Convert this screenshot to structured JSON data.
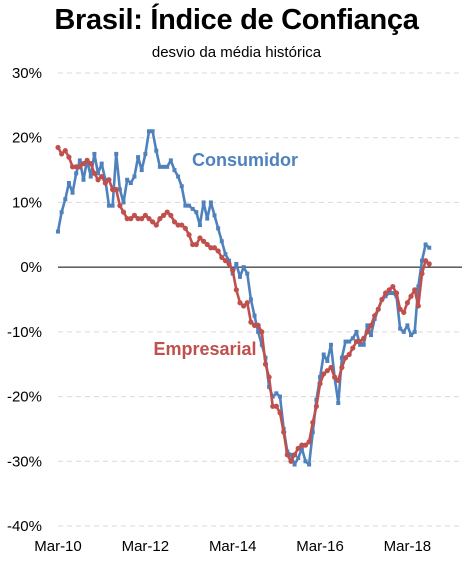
{
  "chart_data": {
    "type": "line",
    "title": "Brasil: Índice de Confiança",
    "subtitle": "desvio da média histórica",
    "ylim": [
      -40,
      30
    ],
    "yticks": [
      30,
      20,
      10,
      0,
      -10,
      -20,
      -30,
      -40
    ],
    "ytick_labels": [
      "30%",
      "20%",
      "10%",
      "0%",
      "-10%",
      "-20%",
      "-30%",
      "-40%"
    ],
    "xlim": [
      "2010-03",
      "2019-06"
    ],
    "xticks": [
      "2010-03",
      "2012-03",
      "2014-03",
      "2016-03",
      "2018-03"
    ],
    "xtick_labels": [
      "Mar-10",
      "Mar-12",
      "Mar-14",
      "Mar-16",
      "Mar-18"
    ],
    "grid": true,
    "series": [
      {
        "name": "Consumidor",
        "color": "#4f81bd",
        "points": [
          [
            "2010-03",
            5.5
          ],
          [
            "2010-04",
            8.5
          ],
          [
            "2010-05",
            10.5
          ],
          [
            "2010-06",
            13.0
          ],
          [
            "2010-07",
            11.5
          ],
          [
            "2010-08",
            14.5
          ],
          [
            "2010-09",
            16.5
          ],
          [
            "2010-10",
            13.5
          ],
          [
            "2010-11",
            16.5
          ],
          [
            "2010-12",
            14.0
          ],
          [
            "2011-01",
            17.5
          ],
          [
            "2011-02",
            14.5
          ],
          [
            "2011-03",
            16.0
          ],
          [
            "2011-04",
            13.5
          ],
          [
            "2011-05",
            9.5
          ],
          [
            "2011-06",
            9.5
          ],
          [
            "2011-07",
            17.5
          ],
          [
            "2011-08",
            12.0
          ],
          [
            "2011-09",
            10.0
          ],
          [
            "2011-10",
            13.5
          ],
          [
            "2011-11",
            13.0
          ],
          [
            "2011-12",
            14.0
          ],
          [
            "2012-01",
            17.0
          ],
          [
            "2012-02",
            15.0
          ],
          [
            "2012-03",
            17.5
          ],
          [
            "2012-04",
            21.0
          ],
          [
            "2012-05",
            21.0
          ],
          [
            "2012-06",
            18.0
          ],
          [
            "2012-07",
            15.5
          ],
          [
            "2012-08",
            15.5
          ],
          [
            "2012-09",
            15.5
          ],
          [
            "2012-10",
            16.5
          ],
          [
            "2012-11",
            15.0
          ],
          [
            "2012-12",
            14.0
          ],
          [
            "2013-01",
            12.5
          ],
          [
            "2013-02",
            9.5
          ],
          [
            "2013-03",
            9.5
          ],
          [
            "2013-04",
            9.0
          ],
          [
            "2013-05",
            8.5
          ],
          [
            "2013-06",
            6.5
          ],
          [
            "2013-07",
            10.0
          ],
          [
            "2013-08",
            7.5
          ],
          [
            "2013-09",
            10.0
          ],
          [
            "2013-10",
            8.0
          ],
          [
            "2013-11",
            6.0
          ],
          [
            "2013-12",
            4.0
          ],
          [
            "2014-01",
            2.0
          ],
          [
            "2014-02",
            1.0
          ],
          [
            "2014-03",
            -1.0
          ],
          [
            "2014-04",
            0.5
          ],
          [
            "2014-05",
            -1.5
          ],
          [
            "2014-06",
            0.0
          ],
          [
            "2014-07",
            -1.0
          ],
          [
            "2014-08",
            -5.0
          ],
          [
            "2014-09",
            -7.5
          ],
          [
            "2014-10",
            -10.0
          ],
          [
            "2014-11",
            -12.0
          ],
          [
            "2014-12",
            -14.0
          ],
          [
            "2015-01",
            -18.5
          ],
          [
            "2015-02",
            -20.0
          ],
          [
            "2015-03",
            -19.5
          ],
          [
            "2015-04",
            -20.0
          ],
          [
            "2015-05",
            -25.0
          ],
          [
            "2015-06",
            -28.5
          ],
          [
            "2015-07",
            -29.0
          ],
          [
            "2015-08",
            -30.5
          ],
          [
            "2015-09",
            -29.5
          ],
          [
            "2015-10",
            -28.0
          ],
          [
            "2015-11",
            -30.0
          ],
          [
            "2015-12",
            -30.5
          ],
          [
            "2016-01",
            -25.5
          ],
          [
            "2016-02",
            -20.5
          ],
          [
            "2016-03",
            -17.0
          ],
          [
            "2016-04",
            -13.5
          ],
          [
            "2016-05",
            -14.5
          ],
          [
            "2016-06",
            -12.0
          ],
          [
            "2016-07",
            -17.0
          ],
          [
            "2016-08",
            -21.0
          ],
          [
            "2016-09",
            -14.0
          ],
          [
            "2016-10",
            -11.5
          ],
          [
            "2016-11",
            -11.5
          ],
          [
            "2016-12",
            -11.0
          ],
          [
            "2017-01",
            -10.0
          ],
          [
            "2017-02",
            -12.0
          ],
          [
            "2017-03",
            -12.0
          ],
          [
            "2017-04",
            -9.0
          ],
          [
            "2017-05",
            -10.5
          ],
          [
            "2017-06",
            -8.0
          ],
          [
            "2017-07",
            -6.5
          ],
          [
            "2017-08",
            -5.0
          ],
          [
            "2017-09",
            -4.5
          ],
          [
            "2017-10",
            -4.0
          ],
          [
            "2017-11",
            -4.0
          ],
          [
            "2017-12",
            -4.5
          ],
          [
            "2018-01",
            -9.5
          ],
          [
            "2018-02",
            -10.0
          ],
          [
            "2018-03",
            -9.0
          ],
          [
            "2018-04",
            -10.5
          ],
          [
            "2018-05",
            -10.0
          ],
          [
            "2018-06",
            -3.0
          ],
          [
            "2018-07",
            1.0
          ],
          [
            "2018-08",
            3.5
          ],
          [
            "2018-09",
            3.0
          ]
        ]
      },
      {
        "name": "Empresarial",
        "color": "#c0504d",
        "points": [
          [
            "2010-03",
            18.5
          ],
          [
            "2010-04",
            17.5
          ],
          [
            "2010-05",
            18.0
          ],
          [
            "2010-06",
            17.0
          ],
          [
            "2010-07",
            15.5
          ],
          [
            "2010-08",
            15.5
          ],
          [
            "2010-09",
            15.5
          ],
          [
            "2010-10",
            16.0
          ],
          [
            "2010-11",
            16.5
          ],
          [
            "2010-12",
            16.0
          ],
          [
            "2011-01",
            14.5
          ],
          [
            "2011-02",
            13.5
          ],
          [
            "2011-03",
            14.0
          ],
          [
            "2011-04",
            13.0
          ],
          [
            "2011-05",
            13.5
          ],
          [
            "2011-06",
            12.0
          ],
          [
            "2011-07",
            12.0
          ],
          [
            "2011-08",
            9.5
          ],
          [
            "2011-09",
            8.5
          ],
          [
            "2011-10",
            7.5
          ],
          [
            "2011-11",
            7.5
          ],
          [
            "2011-12",
            8.0
          ],
          [
            "2012-01",
            7.5
          ],
          [
            "2012-02",
            7.5
          ],
          [
            "2012-03",
            8.0
          ],
          [
            "2012-04",
            7.5
          ],
          [
            "2012-05",
            7.0
          ],
          [
            "2012-06",
            6.5
          ],
          [
            "2012-07",
            7.5
          ],
          [
            "2012-08",
            8.0
          ],
          [
            "2012-09",
            8.5
          ],
          [
            "2012-10",
            8.0
          ],
          [
            "2012-11",
            7.0
          ],
          [
            "2012-12",
            6.5
          ],
          [
            "2013-01",
            6.5
          ],
          [
            "2013-02",
            6.0
          ],
          [
            "2013-03",
            5.0
          ],
          [
            "2013-04",
            3.5
          ],
          [
            "2013-05",
            3.5
          ],
          [
            "2013-06",
            4.5
          ],
          [
            "2013-07",
            4.0
          ],
          [
            "2013-08",
            3.5
          ],
          [
            "2013-09",
            3.0
          ],
          [
            "2013-10",
            3.0
          ],
          [
            "2013-11",
            2.5
          ],
          [
            "2013-12",
            1.5
          ],
          [
            "2014-01",
            1.0
          ],
          [
            "2014-02",
            0.5
          ],
          [
            "2014-03",
            -0.5
          ],
          [
            "2014-04",
            -3.5
          ],
          [
            "2014-05",
            -5.5
          ],
          [
            "2014-06",
            -6.0
          ],
          [
            "2014-07",
            -5.5
          ],
          [
            "2014-08",
            -8.5
          ],
          [
            "2014-09",
            -9.0
          ],
          [
            "2014-10",
            -9.0
          ],
          [
            "2014-11",
            -10.0
          ],
          [
            "2014-12",
            -15.0
          ],
          [
            "2015-01",
            -17.0
          ],
          [
            "2015-02",
            -21.5
          ],
          [
            "2015-03",
            -21.5
          ],
          [
            "2015-04",
            -22.5
          ],
          [
            "2015-05",
            -25.5
          ],
          [
            "2015-06",
            -29.0
          ],
          [
            "2015-07",
            -30.0
          ],
          [
            "2015-08",
            -29.0
          ],
          [
            "2015-09",
            -28.0
          ],
          [
            "2015-10",
            -27.5
          ],
          [
            "2015-11",
            -27.5
          ],
          [
            "2015-12",
            -27.0
          ],
          [
            "2016-01",
            -24.0
          ],
          [
            "2016-02",
            -21.5
          ],
          [
            "2016-03",
            -18.0
          ],
          [
            "2016-04",
            -16.5
          ],
          [
            "2016-05",
            -16.0
          ],
          [
            "2016-06",
            -15.5
          ],
          [
            "2016-07",
            -17.0
          ],
          [
            "2016-08",
            -17.5
          ],
          [
            "2016-09",
            -15.5
          ],
          [
            "2016-10",
            -14.0
          ],
          [
            "2016-11",
            -13.5
          ],
          [
            "2016-12",
            -12.5
          ],
          [
            "2017-01",
            -11.5
          ],
          [
            "2017-02",
            -11.5
          ],
          [
            "2017-03",
            -11.0
          ],
          [
            "2017-04",
            -10.0
          ],
          [
            "2017-05",
            -9.0
          ],
          [
            "2017-06",
            -7.5
          ],
          [
            "2017-07",
            -6.5
          ],
          [
            "2017-08",
            -5.0
          ],
          [
            "2017-09",
            -4.0
          ],
          [
            "2017-10",
            -3.5
          ],
          [
            "2017-11",
            -3.0
          ],
          [
            "2017-12",
            -4.0
          ],
          [
            "2018-01",
            -6.5
          ],
          [
            "2018-02",
            -7.0
          ],
          [
            "2018-03",
            -5.5
          ],
          [
            "2018-04",
            -4.5
          ],
          [
            "2018-05",
            -3.5
          ],
          [
            "2018-06",
            -6.0
          ],
          [
            "2018-07",
            -1.0
          ],
          [
            "2018-08",
            1.0
          ],
          [
            "2018-09",
            0.5
          ]
        ]
      }
    ]
  }
}
